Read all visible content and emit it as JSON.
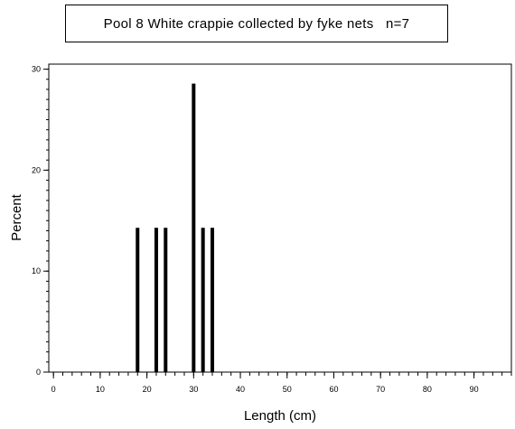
{
  "chart_data": {
    "type": "bar",
    "title": "Pool 8 White crappie collected by fyke nets   n=7",
    "xlabel": "Length (cm)",
    "ylabel": "Percent",
    "xlim": [
      -1,
      98
    ],
    "ylim": [
      0,
      30.5
    ],
    "xticks": [
      0,
      10,
      20,
      30,
      40,
      50,
      60,
      70,
      80,
      90
    ],
    "yticks": [
      0,
      10,
      20,
      30
    ],
    "x": [
      18,
      22,
      24,
      30,
      32,
      34
    ],
    "values": [
      14.29,
      14.29,
      14.29,
      28.57,
      14.29,
      14.29
    ],
    "grid": false,
    "legend": "none"
  }
}
